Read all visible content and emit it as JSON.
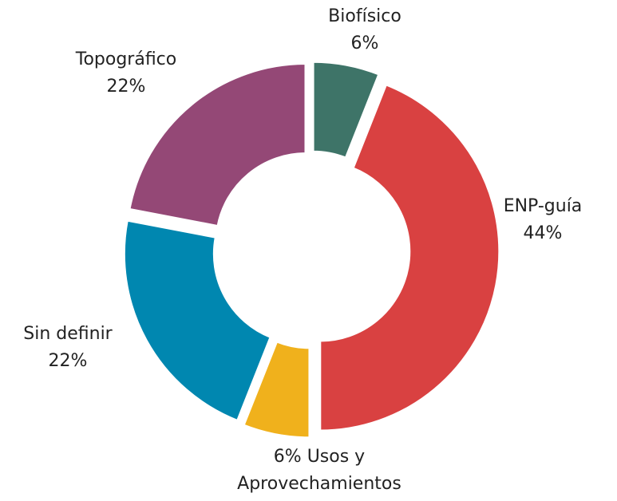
{
  "chart_data": {
    "type": "donut",
    "categories": [
      "Biofísico",
      "ENP-guía",
      "Usos y Aprovechamientos",
      "Sin definir",
      "Topográfico"
    ],
    "values": [
      6,
      44,
      6,
      22,
      22
    ],
    "value_labels": [
      "6%",
      "44%",
      "6%",
      "22%",
      "22%"
    ],
    "colors": [
      "#3e7468",
      "#d94141",
      "#f0b11c",
      "#0087b0",
      "#944876"
    ]
  }
}
